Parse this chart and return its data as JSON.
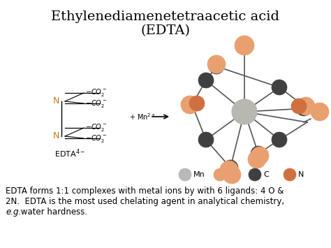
{
  "title_line1": "Ethylenediamenetetraacetic acid",
  "title_line2": "(EDTA)",
  "title_fontsize": 14,
  "body_line1": "EDTA forms 1:1 complexes with metal ions by with 6 ligands: 4 O &",
  "body_line2": "2N.  EDTA is the most used chelating agent in analytical chemistry,",
  "body_line3_italic": "e.g.",
  "body_line3_normal": " water hardness.",
  "body_fontsize": 8.5,
  "legend_items": [
    {
      "label": "Mn",
      "color": "#b8b8b8"
    },
    {
      "label": "O",
      "color": "#e8a070"
    },
    {
      "label": "C",
      "color": "#404040"
    },
    {
      "label": "N",
      "color": "#d07040"
    }
  ],
  "background_color": "#ffffff",
  "title_color": "#000000",
  "body_color": "#000000",
  "N_color": "#c07820",
  "CO2_color": "#000000",
  "struct_fontsize": 7,
  "bond_color": "#555555",
  "dark_gray": "#404040",
  "orange_O": "#e8a070",
  "orange_N": "#d07040",
  "silver_Mn": "#b8b8b0"
}
